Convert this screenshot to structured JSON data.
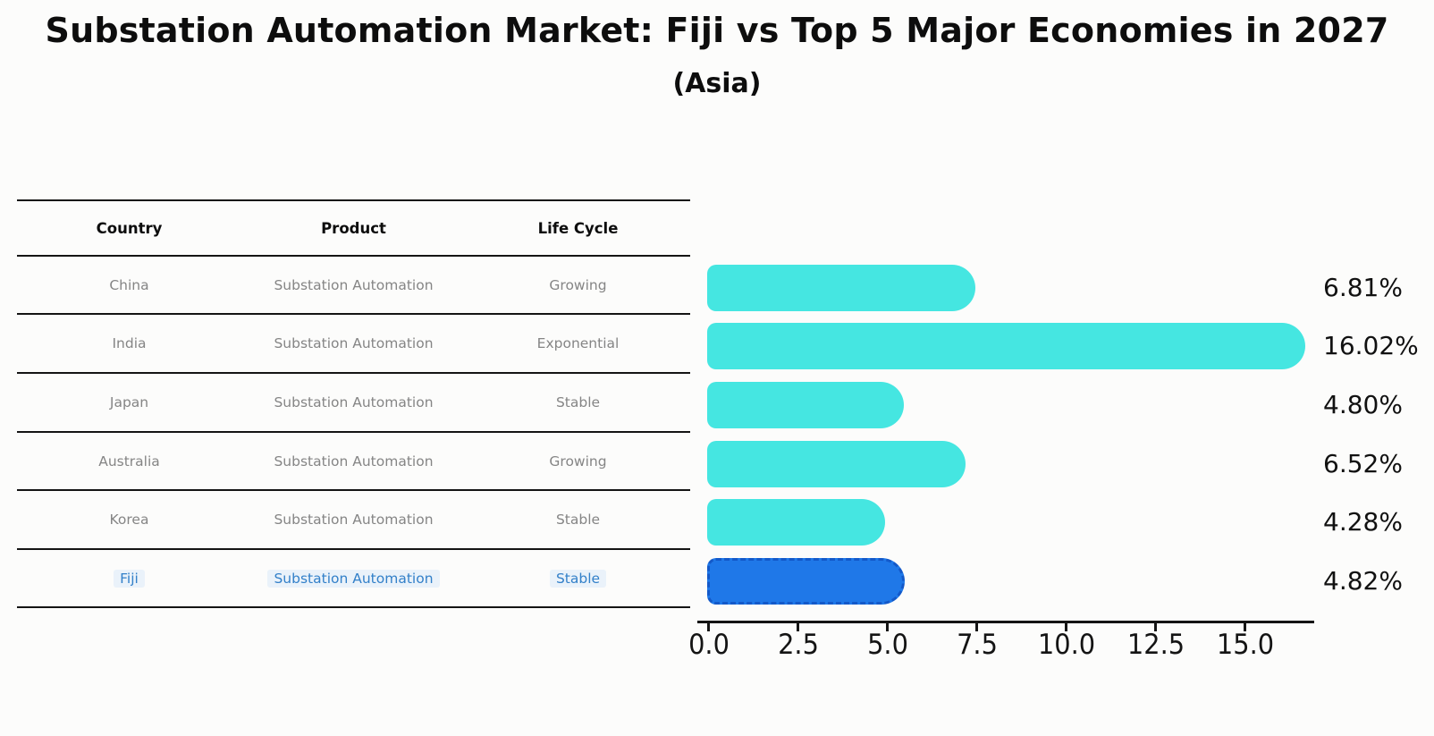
{
  "title": "Substation Automation Market: Fiji vs Top 5 Major Economies in 2027",
  "subtitle": "(Asia)",
  "table": {
    "columns": [
      "Country",
      "Product",
      "Life Cycle"
    ],
    "rows": [
      {
        "country": "China",
        "product": "Substation Automation",
        "life_cycle": "Growing",
        "highlighted": false
      },
      {
        "country": "India",
        "product": "Substation Automation",
        "life_cycle": "Exponential",
        "highlighted": false
      },
      {
        "country": "Japan",
        "product": "Substation Automation",
        "life_cycle": "Stable",
        "highlighted": false
      },
      {
        "country": "Australia",
        "product": "Substation Automation",
        "life_cycle": "Growing",
        "highlighted": false
      },
      {
        "country": "Korea",
        "product": "Substation Automation",
        "life_cycle": "Stable",
        "highlighted": false
      },
      {
        "country": "Fiji",
        "product": "Substation Automation",
        "life_cycle": "Stable",
        "highlighted": true
      }
    ]
  },
  "chart_data": {
    "type": "bar",
    "orientation": "horizontal",
    "title": "Substation Automation Market: Fiji vs Top 5 Major Economies in 2027",
    "subtitle": "(Asia)",
    "categories": [
      "China",
      "India",
      "Japan",
      "Australia",
      "Korea",
      "Fiji"
    ],
    "values": [
      6.81,
      16.02,
      4.8,
      6.52,
      4.28,
      4.82
    ],
    "bar_labels": [
      "6.81%",
      "16.02%",
      "4.80%",
      "6.52%",
      "4.28%",
      "4.82%"
    ],
    "xlim": [
      0,
      16.9
    ],
    "xticks": [
      0,
      2.5,
      5,
      7.5,
      10,
      12.5,
      15
    ],
    "xtick_labels": [
      "0.0",
      "2.5",
      "5.0",
      "7.5",
      "10.0",
      "12.5",
      "15.0"
    ],
    "grid": false,
    "legend": false,
    "highlight_index": 5,
    "colors": {
      "bar": "#45E6E1",
      "highlight_bar": "#1F78E8",
      "highlight_border": "#1359C9",
      "highlight_text": "#3380C9",
      "table_text": "#858585",
      "axis": "#141414"
    }
  }
}
